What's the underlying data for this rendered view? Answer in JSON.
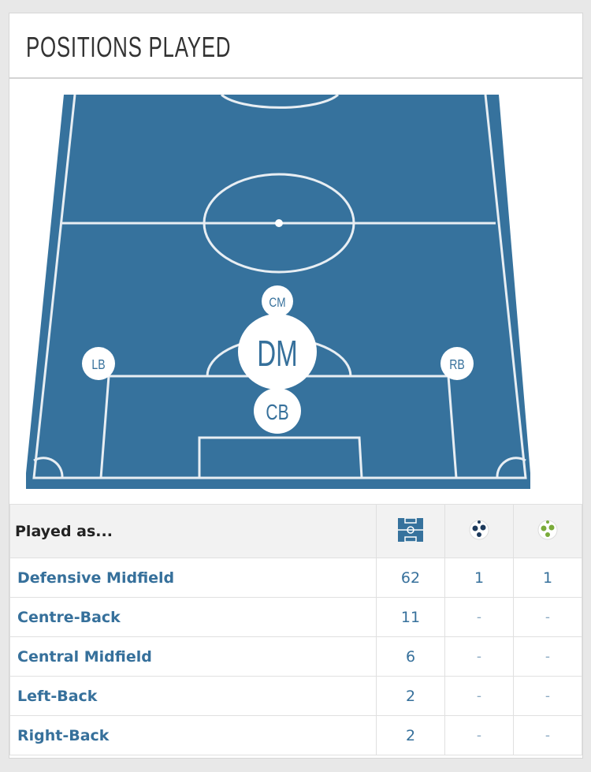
{
  "title": "POSITIONS PLAYED",
  "colors": {
    "pitch": "#36729d",
    "link": "#36709b",
    "header_bg": "#f2f2f2"
  },
  "positions": [
    {
      "code": "CM",
      "name": "Central Midfield"
    },
    {
      "code": "DM",
      "name": "Defensive Midfield"
    },
    {
      "code": "LB",
      "name": "Left-Back"
    },
    {
      "code": "RB",
      "name": "Right-Back"
    },
    {
      "code": "CB",
      "name": "Centre-Back"
    }
  ],
  "table": {
    "header": "Played as...",
    "column_icons": [
      "pitch-icon",
      "ball-icon",
      "green-ball-icon"
    ],
    "rows": [
      {
        "position": "Defensive Midfield",
        "apps": "62",
        "goals": "1",
        "assists": "1"
      },
      {
        "position": "Centre-Back",
        "apps": "11",
        "goals": "-",
        "assists": "-"
      },
      {
        "position": "Central Midfield",
        "apps": "6",
        "goals": "-",
        "assists": "-"
      },
      {
        "position": "Left-Back",
        "apps": "2",
        "goals": "-",
        "assists": "-"
      },
      {
        "position": "Right-Back",
        "apps": "2",
        "goals": "-",
        "assists": "-"
      }
    ]
  }
}
